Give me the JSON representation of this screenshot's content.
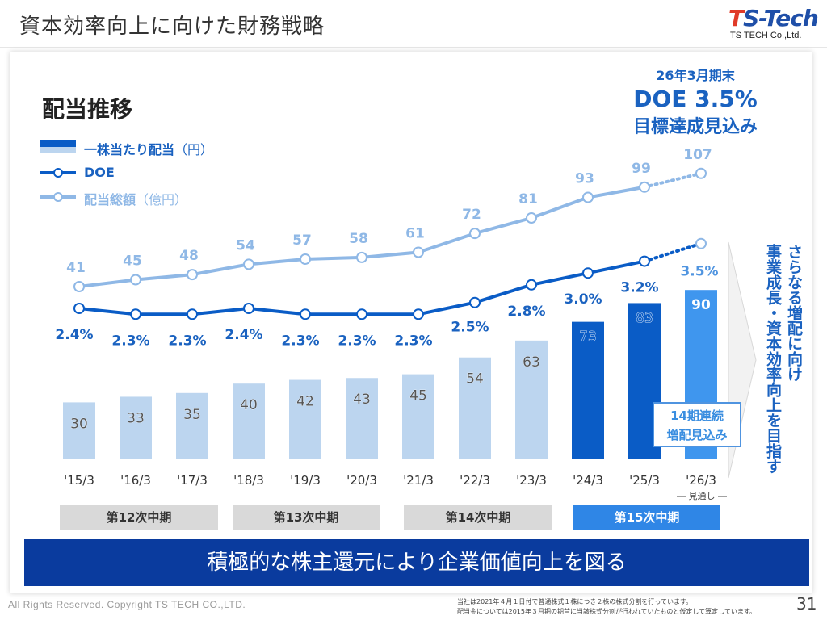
{
  "header": {
    "title": "資本効率向上に向けた財務戦略",
    "logo_main_t": "T",
    "logo_main_rest": "S-Tech",
    "logo_sub": "TS TECH Co.,Ltd."
  },
  "chart_title": "配当推移",
  "legend": {
    "dps": "一株当たり配当",
    "dps_unit": "（円）",
    "doe": "DOE",
    "total": "配当総額",
    "total_unit": "（億円）"
  },
  "target": {
    "line1": "26年3月期末",
    "line2": "DOE 3.5%",
    "line3": "目標達成見込み"
  },
  "growth_badge": {
    "line1": "14期連続",
    "line2": "増配見込み"
  },
  "forecast_note": "― 見通し ―",
  "vertical_msg": {
    "line1": "さらなる増配に向け",
    "line2": "事業成長・資本効率向上を目指す"
  },
  "phases": [
    {
      "label": "第12次中期",
      "bg": "#d9d9d9",
      "fg": "#333333"
    },
    {
      "label": "第13次中期",
      "bg": "#d9d9d9",
      "fg": "#333333"
    },
    {
      "label": "第14次中期",
      "bg": "#d9d9d9",
      "fg": "#333333"
    },
    {
      "label": "第15次中期",
      "bg": "#2f86e6",
      "fg": "#ffffff"
    }
  ],
  "banner": "積極的な株主還元により企業価値向上を図る",
  "footer": {
    "copyright": "All Rights Reserved. Copyright TS TECH CO.,LTD.",
    "note1": "当社は2021年４月１日付で普通株式１株につき２株の株式分割を行っています。",
    "note2": "配当金については2015年３月期の期首に当該株式分割が行われていたものと仮定して算定しています。",
    "page": "31"
  },
  "colors": {
    "bar_past": "#bcd5ef",
    "bar_current": "#0a5cc6",
    "bar_forecast": "#3f96ee",
    "doe_line": "#0a5cc6",
    "total_line": "#8fb8e6",
    "label_blue": "#1a62c0",
    "total_label": "#8fb8e6"
  },
  "chart_data": {
    "type": "bar",
    "categories": [
      "'15/3",
      "'16/3",
      "'17/3",
      "'18/3",
      "'19/3",
      "'20/3",
      "'21/3",
      "'22/3",
      "'23/3",
      "'24/3",
      "'25/3",
      "'26/3"
    ],
    "series": [
      {
        "name": "一株当たり配当（円）",
        "type": "bar",
        "values": [
          30,
          33,
          35,
          40,
          42,
          43,
          45,
          54,
          63,
          73,
          83,
          90
        ]
      },
      {
        "name": "DOE",
        "type": "line",
        "values": [
          2.4,
          2.3,
          2.3,
          2.4,
          2.3,
          2.3,
          2.3,
          2.5,
          2.8,
          3.0,
          3.2,
          3.5
        ],
        "value_labels": [
          "2.4%",
          "2.3%",
          "2.3%",
          "2.4%",
          "2.3%",
          "2.3%",
          "2.3%",
          "2.5%",
          "2.8%",
          "3.0%",
          "3.2%",
          "3.5%"
        ]
      },
      {
        "name": "配当総額（億円）",
        "type": "line",
        "values": [
          41,
          45,
          48,
          54,
          57,
          58,
          61,
          72,
          81,
          93,
          99,
          107
        ]
      }
    ],
    "forecast_index": 11
  }
}
